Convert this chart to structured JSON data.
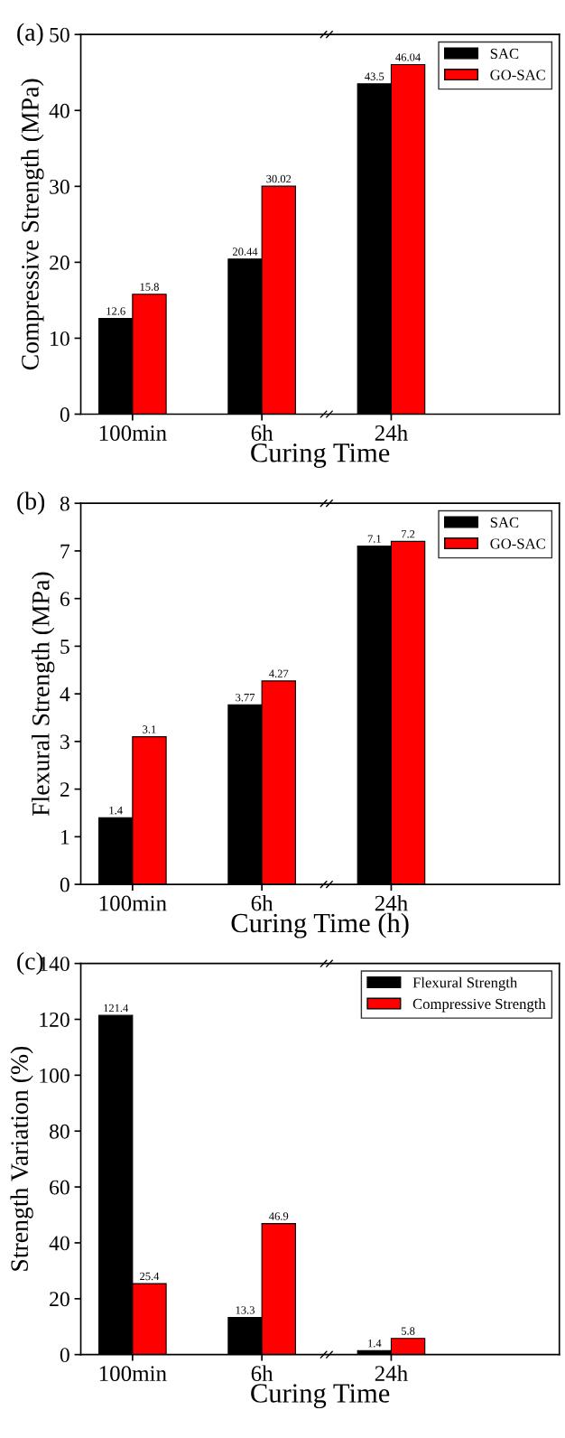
{
  "chart_data": [
    {
      "type": "bar",
      "xlabel": "Curing Time",
      "ylabel": "Compressive Strength (MPa)",
      "annotations": [
        "(a)"
      ],
      "categories": [
        "100min",
        "6h",
        "24h"
      ],
      "series": [
        {
          "name": "SAC",
          "color": "#000000",
          "values": [
            12.6,
            20.44,
            43.5
          ]
        },
        {
          "name": "GO-SAC",
          "color": "#ff0000",
          "values": [
            15.8,
            30.02,
            46.04
          ]
        }
      ],
      "ylim": [
        0,
        50
      ],
      "yticks": [
        0,
        10,
        20,
        30,
        40,
        50
      ],
      "data_labels": true,
      "legend": "top right",
      "grid": false
    },
    {
      "type": "bar",
      "xlabel": "Curing Time (h)",
      "ylabel": "Flexural Strength (MPa)",
      "annotations": [
        "(b)"
      ],
      "categories": [
        "100min",
        "6h",
        "24h"
      ],
      "series": [
        {
          "name": "SAC",
          "color": "#000000",
          "values": [
            1.4,
            3.77,
            7.1
          ]
        },
        {
          "name": "GO-SAC",
          "color": "#ff0000",
          "values": [
            3.1,
            4.27,
            7.2
          ]
        }
      ],
      "ylim": [
        0,
        8
      ],
      "yticks": [
        0,
        1,
        2,
        3,
        4,
        5,
        6,
        7,
        8
      ],
      "data_labels": true,
      "legend": "top right",
      "grid": false
    },
    {
      "type": "bar",
      "xlabel": "Curing Time",
      "ylabel": "Strength Variation (%)",
      "annotations": [
        "(c)"
      ],
      "categories": [
        "100min",
        "6h",
        "24h"
      ],
      "series": [
        {
          "name": "Flexural Strength",
          "color": "#000000",
          "values": [
            121.4,
            13.3,
            1.4
          ]
        },
        {
          "name": "Compressive Strength",
          "color": "#ff0000",
          "values": [
            25.4,
            46.9,
            5.8
          ]
        }
      ],
      "ylim": [
        0,
        140
      ],
      "yticks": [
        0,
        20,
        40,
        60,
        80,
        100,
        120,
        140
      ],
      "data_labels": true,
      "legend": "top right",
      "grid": false
    }
  ]
}
